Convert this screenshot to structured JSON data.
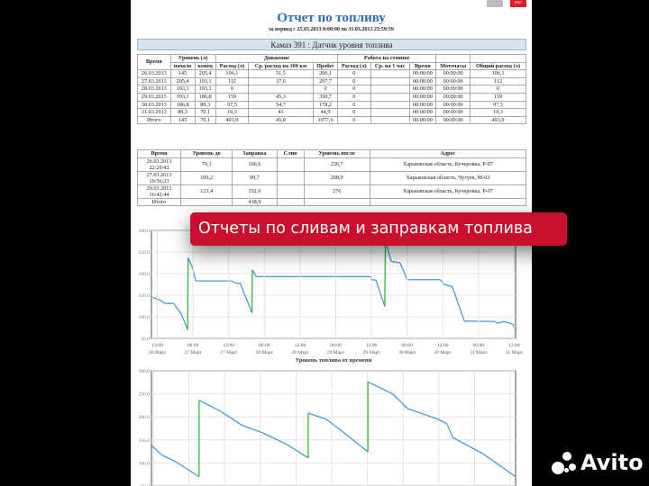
{
  "report": {
    "title": "Отчет по топливу",
    "period": "за период с 25.03.2013 0:00:00 по 31.03.2013 23:59:59",
    "vehicle": "Камаз 391 : Датчик уровня топлива"
  },
  "table1": {
    "groups": [
      "Уровень (л)",
      "Движение",
      "Работа на стоянке"
    ],
    "headers": [
      "Время",
      "начало",
      "конец",
      "Расход (л)",
      "Ср. расход на 100 км",
      "Пробег",
      "Расход (л)",
      "Ср. на 1 час",
      "Время",
      "Моточасы",
      "Общий расход (л)"
    ],
    "rows": [
      [
        "26.03.2013",
        "145",
        "205,4",
        "106,1",
        "51,5",
        "206,1",
        "0",
        "",
        "00:00:00",
        "00:00:00",
        "106,1"
      ],
      [
        "27.03.2013",
        "205,4",
        "193,1",
        "112",
        "37,6",
        "297,7",
        "0",
        "",
        "00:00:00",
        "00:00:00",
        "112"
      ],
      [
        "28.03.2013",
        "193,1",
        "193,1",
        "0",
        "",
        "0",
        "0",
        "",
        "00:00:00",
        "00:00:00",
        "0"
      ],
      [
        "29.03.2013",
        "193,1",
        "186,8",
        "159",
        "45,3",
        "350,7",
        "0",
        "",
        "00:00:00",
        "00:00:00",
        "159"
      ],
      [
        "30.03.2013",
        "186,8",
        "89,3",
        "97,5",
        "54,7",
        "178,2",
        "0",
        "",
        "00:00:00",
        "00:00:00",
        "97,5"
      ],
      [
        "31.03.2013",
        "89,3",
        "70,1",
        "19,3",
        "43",
        "44,9",
        "0",
        "",
        "00:00:00",
        "00:00:00",
        "19,3"
      ],
      [
        "Итого",
        "145",
        "70,1",
        "493,9",
        "45,8",
        "1077,6",
        "0",
        "",
        "00:00:00",
        "00:00:00",
        "493,9"
      ]
    ]
  },
  "table2": {
    "headers": [
      "Время",
      "Уровень до",
      "Заправка",
      "Слив",
      "Уровень после",
      "Адрес"
    ],
    "rows": [
      [
        "26.03.2013 22:20:42",
        "70,1",
        "166,6",
        "",
        "236,7",
        "Харьковская область, Кучеровка, Р-07"
      ],
      [
        "27.03.2013 19:56:23",
        "109,2",
        "99,7",
        "",
        "208,9",
        "Харьковская область, Чугуев, М-03"
      ],
      [
        "29.03.2013 16:42:44",
        "123,4",
        "152,6",
        "",
        "276",
        "Харьковская область, Кучеровка, Р-07"
      ],
      [
        "Итого",
        "",
        "418,9",
        "",
        "",
        ""
      ]
    ]
  },
  "banner": "Отчеты по сливам и заправкам топлива",
  "watermark": "Avito",
  "chart_data": [
    {
      "type": "line",
      "xlabel": "Уровень топлива от времени",
      "ylim": [
        50,
        300
      ],
      "yticks": [
        "300.0",
        "250.0",
        "200.0",
        "150.0",
        "100.0",
        "50.0"
      ],
      "xticks": [
        "12:00|26 Март",
        "00:00|27 Март",
        "12:00|27 Март",
        "00:00|28 Март",
        "12:00|28 Март",
        "00:00|29 Март",
        "12:00|29 Март",
        "00:00|30 Март",
        "12:00|30 Март",
        "00:00|31 Март",
        "12:00|31 Март"
      ],
      "colors": {
        "level": "#4a9ad6",
        "refuel": "#2fb82f"
      },
      "points": [
        [
          "26.03 10:30",
          145
        ],
        [
          "26.03 13:00",
          138
        ],
        [
          "26.03 14:30",
          131
        ],
        [
          "26.03 17:30",
          131
        ],
        [
          "26.03 18:30",
          121
        ],
        [
          "26.03 20:00",
          107
        ],
        [
          "26.03 22:10",
          70
        ],
        [
          "26.03 22:20",
          236.7,
          "r"
        ],
        [
          "26.03 23:45",
          214
        ],
        [
          "27.03 00:55",
          183
        ],
        [
          "27.03 12:55",
          183
        ],
        [
          "27.03 14:20",
          178
        ],
        [
          "27.03 15:50",
          178
        ],
        [
          "27.03 19:50",
          109
        ],
        [
          "27.03 19:56",
          208.9,
          "r"
        ],
        [
          "27.03 21:10",
          193
        ],
        [
          "29.03 11:40",
          193
        ],
        [
          "29.03 12:00",
          186
        ],
        [
          "29.03 13:30",
          185
        ],
        [
          "29.03 16:30",
          124
        ],
        [
          "29.03 16:42",
          276,
          "r"
        ],
        [
          "29.03 18:40",
          228
        ],
        [
          "29.03 21:40",
          225
        ],
        [
          "30.03 00:00",
          186
        ],
        [
          "30.03 11:15",
          186
        ],
        [
          "30.03 12:15",
          176
        ],
        [
          "30.03 15:15",
          169
        ],
        [
          "30.03 19:15",
          90
        ],
        [
          "31.03 05:30",
          89
        ],
        [
          "31.03 06:30",
          85
        ],
        [
          "31.03 08:30",
          89
        ],
        [
          "31.03 11:30",
          83
        ],
        [
          "31.03 12:20",
          70
        ]
      ]
    },
    {
      "type": "line",
      "ylim": [
        50,
        300
      ],
      "yticks": [
        "300.0",
        "250.0",
        "200.0",
        "150.0",
        "100.0",
        "50.0"
      ],
      "colors": {
        "level": "#4a9ad6",
        "refuel": "#2fb82f"
      },
      "points": [
        [
          0,
          138
        ],
        [
          35,
          117
        ],
        [
          80,
          103
        ],
        [
          158,
          70
        ],
        [
          158,
          236,
          "r"
        ],
        [
          230,
          212
        ],
        [
          300,
          182
        ],
        [
          370,
          165
        ],
        [
          450,
          140
        ],
        [
          520,
          111
        ],
        [
          520,
          208,
          "r"
        ],
        [
          580,
          195
        ],
        [
          640,
          165
        ],
        [
          718,
          124
        ],
        [
          718,
          276,
          "r"
        ],
        [
          800,
          250
        ],
        [
          850,
          218
        ],
        [
          950,
          195
        ],
        [
          980,
          185
        ],
        [
          1000,
          155
        ],
        [
          1100,
          120
        ],
        [
          1208,
          70
        ]
      ]
    }
  ]
}
